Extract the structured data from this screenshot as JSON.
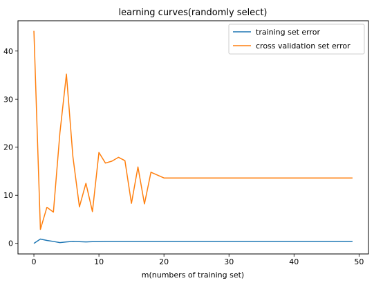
{
  "chart_data": {
    "type": "line",
    "title": "learning curves(randomly select)",
    "xlabel": "m(numbers of training set)",
    "ylabel": "",
    "xlim": [
      -2.45,
      51.45
    ],
    "ylim": [
      -2.2,
      46.3
    ],
    "xticks": [
      0,
      10,
      20,
      30,
      40,
      50
    ],
    "yticks": [
      0,
      10,
      20,
      30,
      40
    ],
    "grid": false,
    "legend_position": "top-right",
    "x": [
      0,
      1,
      2,
      3,
      4,
      5,
      6,
      7,
      8,
      9,
      10,
      11,
      12,
      13,
      14,
      15,
      16,
      17,
      18,
      19,
      20,
      21,
      22,
      23,
      24,
      25,
      26,
      27,
      28,
      29,
      30,
      31,
      32,
      33,
      34,
      35,
      36,
      37,
      38,
      39,
      40,
      41,
      42,
      43,
      44,
      45,
      46,
      47,
      48,
      49
    ],
    "series": [
      {
        "name": "training set error",
        "color": "#1f77b4",
        "values": [
          0.0,
          0.9,
          0.6,
          0.4,
          0.15,
          0.3,
          0.4,
          0.35,
          0.3,
          0.35,
          0.35,
          0.4,
          0.4,
          0.4,
          0.4,
          0.4,
          0.4,
          0.4,
          0.4,
          0.4,
          0.4,
          0.4,
          0.4,
          0.4,
          0.4,
          0.4,
          0.4,
          0.4,
          0.4,
          0.4,
          0.4,
          0.4,
          0.4,
          0.4,
          0.4,
          0.4,
          0.4,
          0.4,
          0.4,
          0.4,
          0.4,
          0.4,
          0.4,
          0.4,
          0.4,
          0.4,
          0.4,
          0.4,
          0.4,
          0.4
        ]
      },
      {
        "name": "cross validation set error",
        "color": "#ff7f0e",
        "values": [
          44.2,
          2.9,
          7.5,
          6.5,
          23.0,
          35.2,
          18.0,
          7.6,
          12.5,
          6.6,
          18.9,
          16.7,
          17.1,
          17.9,
          17.2,
          8.3,
          15.9,
          8.2,
          14.8,
          14.2,
          13.6,
          13.6,
          13.6,
          13.6,
          13.6,
          13.6,
          13.6,
          13.6,
          13.6,
          13.6,
          13.6,
          13.6,
          13.6,
          13.6,
          13.6,
          13.6,
          13.6,
          13.6,
          13.6,
          13.6,
          13.6,
          13.6,
          13.6,
          13.6,
          13.6,
          13.6,
          13.6,
          13.6,
          13.6,
          13.6
        ]
      }
    ]
  }
}
